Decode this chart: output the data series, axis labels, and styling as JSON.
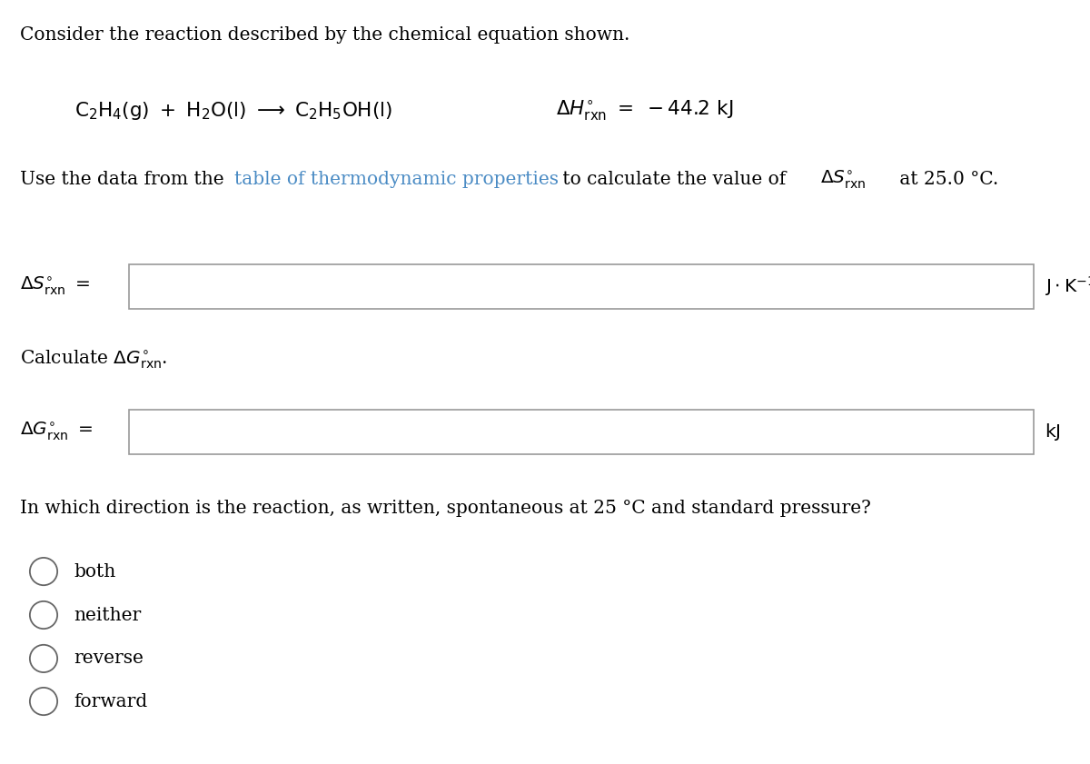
{
  "bg_color": "#ffffff",
  "text_color": "#000000",
  "link_color": "#4a8bc4",
  "fig_width": 12.0,
  "fig_height": 8.41,
  "dpi": 100,
  "line1": "Consider the reaction described by the chemical equation shown.",
  "use_part1": "Use the data from the ",
  "use_link": "table of thermodynamic properties",
  "use_part2": " to calculate the value of ",
  "use_part3": " at 25.0 °C.",
  "direction_q": "In which direction is the reaction, as written, spontaneous at 25 °C and standard pressure?",
  "choices": [
    "both",
    "neither",
    "reverse",
    "forward"
  ],
  "fs_main": 14.5,
  "fs_eq": 15.5,
  "fs_label": 14.5
}
